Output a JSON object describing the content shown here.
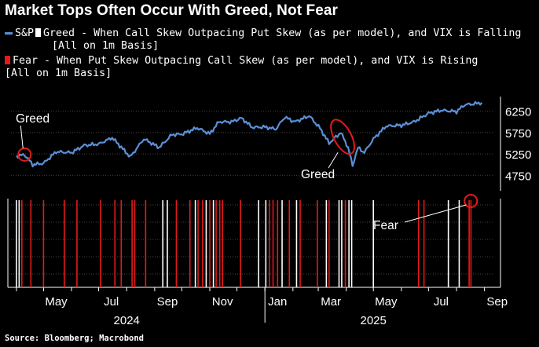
{
  "title": "Market Tops Often Occur With Greed, Not Fear",
  "legend": {
    "sp_label": "S&P",
    "greed_text": "Greed - When Call Skew Outpacing Put Skew (as per model), and VIX is Falling",
    "greed_basis": "[All on 1m Basis]",
    "fear_text": "Fear - When Put Skew Outpacing Call Skew (as per model), and VIX is Rising",
    "fear_basis": "[All on 1m Basis]"
  },
  "source": "Source: Bloomberg; Macrobond",
  "colors": {
    "line": "#5b8fd6",
    "greed": "#ffffff",
    "fear": "#e41a1a",
    "background": "#000000",
    "circle": "#e41a1a"
  },
  "chart_data": {
    "type": "line",
    "series": [
      {
        "name": "S&P",
        "x": [
          "2024-04-01",
          "2024-04-10",
          "2024-04-19",
          "2024-05-01",
          "2024-05-15",
          "2024-06-01",
          "2024-06-15",
          "2024-07-01",
          "2024-07-16",
          "2024-08-05",
          "2024-08-20",
          "2024-09-06",
          "2024-09-20",
          "2024-10-01",
          "2024-10-18",
          "2024-11-01",
          "2024-11-11",
          "2024-11-25",
          "2024-12-06",
          "2024-12-18",
          "2025-01-01",
          "2025-01-13",
          "2025-01-23",
          "2025-02-03",
          "2025-02-19",
          "2025-03-03",
          "2025-03-13",
          "2025-03-26",
          "2025-04-03",
          "2025-04-08",
          "2025-04-14",
          "2025-04-21",
          "2025-05-01",
          "2025-05-15",
          "2025-06-01",
          "2025-06-15",
          "2025-07-01",
          "2025-07-15",
          "2025-08-01",
          "2025-08-10",
          "2025-08-20",
          "2025-08-29"
        ],
        "y": [
          5200,
          5230,
          5000,
          5030,
          5300,
          5280,
          5450,
          5480,
          5630,
          5180,
          5600,
          5400,
          5700,
          5710,
          5860,
          5720,
          6000,
          6000,
          6090,
          5870,
          5880,
          5830,
          6110,
          6000,
          6140,
          5850,
          5500,
          5750,
          5400,
          4980,
          5400,
          5280,
          5600,
          5900,
          5920,
          6000,
          6200,
          6270,
          6240,
          6400,
          6420,
          6450
        ]
      }
    ],
    "yticks": [
      4750,
      5250,
      5750,
      6250
    ],
    "ylim": [
      4480,
      6500
    ],
    "xlim": [
      "2024-03-26",
      "2025-09-10"
    ],
    "xticks": [
      "May",
      "Jul",
      "Sep",
      "Nov",
      "Jan",
      "Mar",
      "May",
      "Jul",
      "Sep"
    ],
    "xtick_dates": [
      "2024-05-01",
      "2024-07-01",
      "2024-09-01",
      "2024-11-01",
      "2025-01-01",
      "2025-03-01",
      "2025-05-01",
      "2025-07-01",
      "2025-09-01"
    ],
    "year_labels": [
      {
        "label": "2024",
        "date": "2024-08-01"
      },
      {
        "label": "2025",
        "date": "2025-05-01"
      }
    ],
    "signals": [
      {
        "date": "2024-04-01",
        "type": "greed"
      },
      {
        "date": "2024-04-04",
        "type": "greed"
      },
      {
        "date": "2024-04-07",
        "type": "fear"
      },
      {
        "date": "2024-04-17",
        "type": "fear"
      },
      {
        "date": "2024-05-01",
        "type": "fear"
      },
      {
        "date": "2024-05-24",
        "type": "fear"
      },
      {
        "date": "2024-06-07",
        "type": "fear"
      },
      {
        "date": "2024-07-03",
        "type": "fear"
      },
      {
        "date": "2024-07-19",
        "type": "fear"
      },
      {
        "date": "2024-07-26",
        "type": "fear"
      },
      {
        "date": "2024-08-07",
        "type": "fear"
      },
      {
        "date": "2024-08-10",
        "type": "fear"
      },
      {
        "date": "2024-08-22",
        "type": "fear"
      },
      {
        "date": "2024-09-10",
        "type": "greed"
      },
      {
        "date": "2024-09-15",
        "type": "greed"
      },
      {
        "date": "2024-09-25",
        "type": "fear"
      },
      {
        "date": "2024-10-10",
        "type": "fear"
      },
      {
        "date": "2024-10-16",
        "type": "greed"
      },
      {
        "date": "2024-10-19",
        "type": "fear"
      },
      {
        "date": "2024-10-24",
        "type": "fear"
      },
      {
        "date": "2024-10-28",
        "type": "greed"
      },
      {
        "date": "2024-11-01",
        "type": "fear"
      },
      {
        "date": "2024-11-05",
        "type": "greed"
      },
      {
        "date": "2024-11-08",
        "type": "fear"
      },
      {
        "date": "2024-11-12",
        "type": "fear"
      },
      {
        "date": "2024-11-15",
        "type": "fear"
      },
      {
        "date": "2024-12-05",
        "type": "fear"
      },
      {
        "date": "2024-12-25",
        "type": "greed"
      },
      {
        "date": "2025-01-02",
        "type": "greed"
      },
      {
        "date": "2025-01-06",
        "type": "fear"
      },
      {
        "date": "2025-01-10",
        "type": "fear"
      },
      {
        "date": "2025-01-15",
        "type": "fear"
      },
      {
        "date": "2025-01-20",
        "type": "greed"
      },
      {
        "date": "2025-01-28",
        "type": "fear"
      },
      {
        "date": "2025-02-05",
        "type": "greed"
      },
      {
        "date": "2025-02-09",
        "type": "fear"
      },
      {
        "date": "2025-02-28",
        "type": "fear"
      },
      {
        "date": "2025-03-10",
        "type": "greed"
      },
      {
        "date": "2025-03-13",
        "type": "fear"
      },
      {
        "date": "2025-03-24",
        "type": "greed"
      },
      {
        "date": "2025-03-27",
        "type": "greed"
      },
      {
        "date": "2025-03-31",
        "type": "fear"
      },
      {
        "date": "2025-04-04",
        "type": "greed"
      },
      {
        "date": "2025-04-07",
        "type": "greed"
      },
      {
        "date": "2025-05-01",
        "type": "greed"
      },
      {
        "date": "2025-06-20",
        "type": "fear"
      },
      {
        "date": "2025-06-26",
        "type": "fear"
      },
      {
        "date": "2025-07-23",
        "type": "greed"
      },
      {
        "date": "2025-08-04",
        "type": "greed"
      },
      {
        "date": "2025-08-15",
        "type": "fear"
      },
      {
        "date": "2025-08-17",
        "type": "fear"
      }
    ],
    "annotations": [
      {
        "text": "Greed",
        "date": "2024-04-10",
        "value": 5235
      },
      {
        "text": "Greed",
        "date": "2025-03-28",
        "value": 5650
      },
      {
        "text": "Fear",
        "date": "2025-08-16"
      }
    ]
  }
}
